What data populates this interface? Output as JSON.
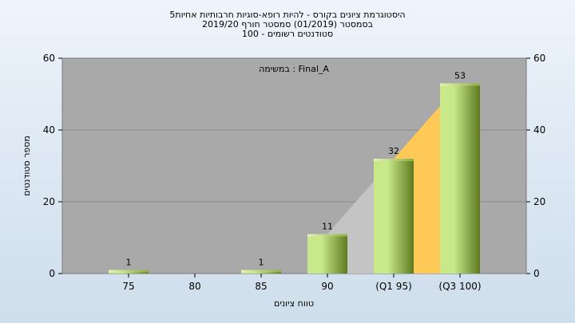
{
  "chart_data": {
    "type": "bar",
    "title_lines": [
      "היסטוגרמת ציונים בקורס - להיות רופא-סוגיות חרבותיות אחיות5",
      "בסמסטר  (01/2019)  סמסטר חורף  2019/20",
      "סטודנטים רשומים - 100"
    ],
    "annotation": "במשימה : Final_A",
    "xlabel": "טווח ציונים",
    "ylabel": "מספר סטודנטים",
    "categories": [
      "75",
      "80",
      "85",
      "90",
      "(Q1 95)",
      "(Q3 100)"
    ],
    "values": [
      1,
      0,
      1,
      11,
      32,
      53
    ],
    "data_labels": [
      "1",
      "",
      "1",
      "11",
      "32",
      "53"
    ],
    "ylim": [
      0,
      60
    ],
    "yticks": [
      0,
      20,
      40,
      60
    ],
    "grid": true,
    "colors": {
      "plot_bg": "#a9a9a9",
      "bar_light": "#c8e88a",
      "bar_dark": "#5e7a1f",
      "area_gray": "#c4c4c4",
      "area_yellow": "#ffc957"
    }
  }
}
